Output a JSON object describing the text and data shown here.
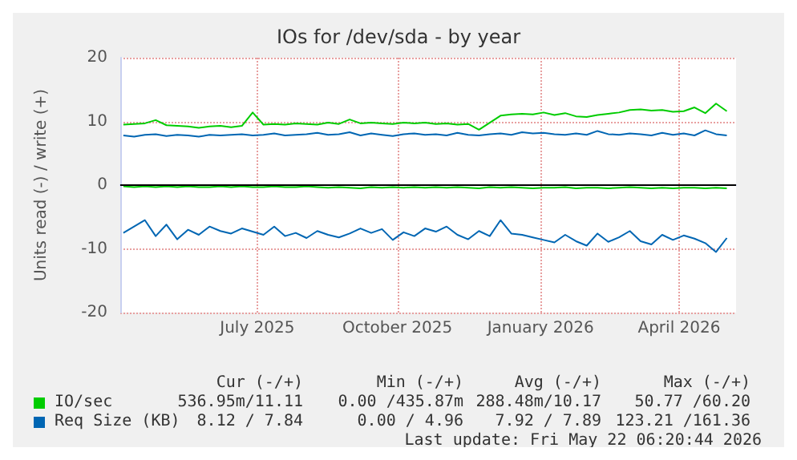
{
  "chart_data": {
    "type": "line",
    "title": "IOs for /dev/sda - by year",
    "ylabel": "Units read (-) / write (+)",
    "x": [
      "2025-04-19",
      "2025-04-26",
      "2025-05-03",
      "2025-05-10",
      "2025-05-17",
      "2025-05-24",
      "2025-05-31",
      "2025-06-07",
      "2025-06-14",
      "2025-06-21",
      "2025-06-28",
      "2025-07-05",
      "2025-07-12",
      "2025-07-19",
      "2025-07-26",
      "2025-08-02",
      "2025-08-09",
      "2025-08-16",
      "2025-08-23",
      "2025-08-30",
      "2025-09-06",
      "2025-09-13",
      "2025-09-20",
      "2025-09-27",
      "2025-10-04",
      "2025-10-11",
      "2025-10-18",
      "2025-10-25",
      "2025-11-01",
      "2025-11-08",
      "2025-11-15",
      "2025-11-22",
      "2025-11-29",
      "2025-12-06",
      "2025-12-13",
      "2025-12-20",
      "2025-12-27",
      "2026-01-03",
      "2026-01-10",
      "2026-01-17",
      "2026-01-24",
      "2026-01-31",
      "2026-02-07",
      "2026-02-14",
      "2026-02-21",
      "2026-02-28",
      "2026-03-07",
      "2026-03-14",
      "2026-03-21",
      "2026-03-28",
      "2026-04-04",
      "2026-04-11",
      "2026-04-18",
      "2026-04-25",
      "2026-05-02",
      "2026-05-09",
      "2026-05-16"
    ],
    "series": [
      {
        "name": "IO/sec",
        "color": "#00cc00",
        "values": [
          9.5,
          9.6,
          9.7,
          10.2,
          9.4,
          9.3,
          9.2,
          9.0,
          9.2,
          9.3,
          9.1,
          9.3,
          11.4,
          9.5,
          9.6,
          9.5,
          9.7,
          9.6,
          9.5,
          9.8,
          9.6,
          10.3,
          9.7,
          9.8,
          9.7,
          9.6,
          9.8,
          9.7,
          9.8,
          9.6,
          9.7,
          9.5,
          9.6,
          8.7,
          9.8,
          10.9,
          11.1,
          11.2,
          11.1,
          11.4,
          11.0,
          11.3,
          10.8,
          10.7,
          11.0,
          11.2,
          11.4,
          11.8,
          11.9,
          11.7,
          11.8,
          11.5,
          11.6,
          12.2,
          11.3,
          12.8,
          11.6
        ]
      },
      {
        "name": "Req Size (KB)",
        "color": "#0066b3",
        "values": [
          7.8,
          7.6,
          7.9,
          8.0,
          7.7,
          7.9,
          7.8,
          7.6,
          7.9,
          7.8,
          7.9,
          8.0,
          7.8,
          7.9,
          8.1,
          7.8,
          7.9,
          8.0,
          8.2,
          7.9,
          8.0,
          8.3,
          7.8,
          8.1,
          7.9,
          7.7,
          8.0,
          8.1,
          7.9,
          8.0,
          7.8,
          8.2,
          7.9,
          7.8,
          8.0,
          8.1,
          7.9,
          8.3,
          8.1,
          8.2,
          8.0,
          7.9,
          8.1,
          7.9,
          8.5,
          8.0,
          7.9,
          8.1,
          8.0,
          7.8,
          8.2,
          7.9,
          8.1,
          7.8,
          8.6,
          8.0,
          7.8
        ]
      },
      {
        "color": "#00cc00",
        "values": [
          -0.2,
          -0.3,
          -0.2,
          -0.3,
          -0.2,
          -0.3,
          -0.2,
          -0.3,
          -0.3,
          -0.2,
          -0.3,
          -0.2,
          -0.3,
          -0.3,
          -0.2,
          -0.3,
          -0.3,
          -0.2,
          -0.3,
          -0.4,
          -0.3,
          -0.4,
          -0.5,
          -0.3,
          -0.4,
          -0.3,
          -0.4,
          -0.3,
          -0.4,
          -0.3,
          -0.4,
          -0.3,
          -0.4,
          -0.5,
          -0.3,
          -0.4,
          -0.3,
          -0.4,
          -0.5,
          -0.4,
          -0.4,
          -0.3,
          -0.5,
          -0.4,
          -0.4,
          -0.5,
          -0.4,
          -0.3,
          -0.4,
          -0.5,
          -0.4,
          -0.5,
          -0.4,
          -0.4,
          -0.5,
          -0.4,
          -0.5
        ]
      },
      {
        "color": "#0066b3",
        "values": [
          -7.5,
          -6.5,
          -5.5,
          -8.0,
          -6.2,
          -8.5,
          -7.0,
          -7.8,
          -6.5,
          -7.2,
          -7.6,
          -6.8,
          -7.3,
          -7.8,
          -6.5,
          -8.0,
          -7.5,
          -8.3,
          -7.2,
          -7.8,
          -8.2,
          -7.6,
          -6.8,
          -7.5,
          -6.9,
          -8.6,
          -7.4,
          -8.0,
          -6.8,
          -7.3,
          -6.5,
          -7.8,
          -8.5,
          -7.2,
          -8.0,
          -5.5,
          -7.6,
          -7.8,
          -8.2,
          -8.6,
          -9.0,
          -7.8,
          -8.8,
          -9.5,
          -7.6,
          -8.9,
          -8.2,
          -7.2,
          -8.8,
          -9.3,
          -7.8,
          -8.6,
          -7.9,
          -8.4,
          -9.1,
          -10.5,
          -8.3
        ]
      }
    ],
    "xlim": [
      "2025-04-17",
      "2026-05-22"
    ],
    "xticks": [
      {
        "value": "2025-07-15",
        "label": "July 2025"
      },
      {
        "value": "2025-10-14",
        "label": "October 2025"
      },
      {
        "value": "2026-01-15",
        "label": "January 2026"
      },
      {
        "value": "2026-04-15",
        "label": "April 2026"
      }
    ],
    "ylim": [
      -20,
      20
    ],
    "yticks": [
      -20,
      -10,
      0,
      10,
      20
    ],
    "ref_lines": [
      {
        "axis": "y",
        "value": 0,
        "color": "#000000"
      }
    ],
    "grid": true,
    "legend": "bottom",
    "marker": "none",
    "line_style": "solid",
    "annotations": [
      "Cur (-/+)",
      "Min (-/+)",
      "Avg (-/+)",
      "Max (-/+)",
      "536.95m/11.11",
      "0.00 /435.87m",
      "288.48m/10.17",
      "50.77 /60.20",
      "8.12 / 7.84",
      "0.00 / 4.96",
      "7.92 / 7.89",
      "123.21 /161.36",
      "Last update: Fri May 22 06:20:44 2026"
    ]
  }
}
